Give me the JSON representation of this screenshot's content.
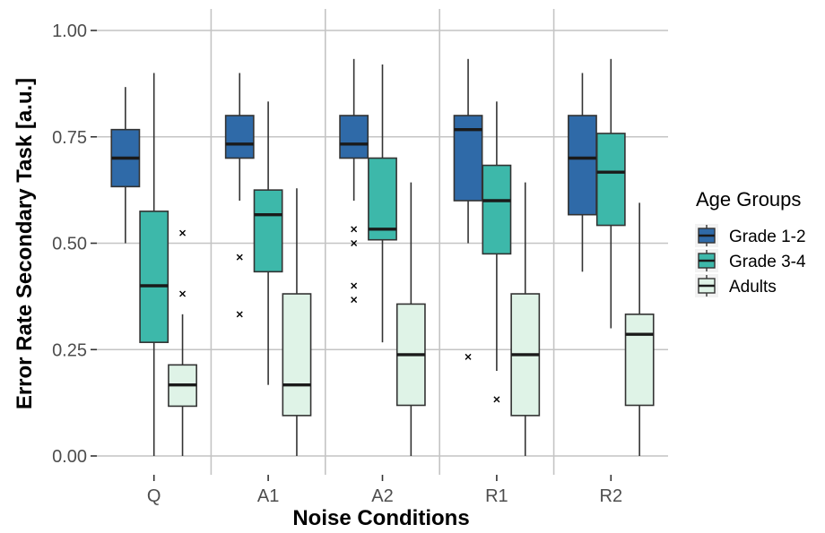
{
  "chart_data": {
    "type": "boxplot",
    "title": "",
    "xlabel": "Noise Conditions",
    "ylabel": "Error Rate Secondary Task [a.u.]",
    "ylim": [
      0,
      1.06
    ],
    "y_ticks": [
      0,
      0.25,
      0.5,
      0.75,
      1.0
    ],
    "y_tick_labels": [
      "0.00",
      "0.25",
      "0.50",
      "0.75",
      "1.00"
    ],
    "categories": [
      "Q",
      "A1",
      "A2",
      "R1",
      "R2"
    ],
    "grid": true,
    "legend": {
      "title": "Age Groups",
      "position": "right"
    },
    "series": [
      {
        "name": "Grade 1-2",
        "color": "#2f6aa8",
        "boxes": [
          {
            "min": 0.5,
            "q1": 0.633,
            "median": 0.7,
            "q3": 0.767,
            "max": 0.867,
            "outliers": []
          },
          {
            "min": 0.6,
            "q1": 0.7,
            "median": 0.733,
            "q3": 0.8,
            "max": 0.9,
            "outliers": [
              0.467,
              0.333
            ]
          },
          {
            "min": 0.6,
            "q1": 0.7,
            "median": 0.733,
            "q3": 0.8,
            "max": 0.933,
            "outliers": [
              0.533,
              0.5,
              0.4,
              0.367
            ]
          },
          {
            "min": 0.5,
            "q1": 0.6,
            "median": 0.767,
            "q3": 0.8,
            "max": 0.933,
            "outliers": [
              0.233
            ]
          },
          {
            "min": 0.433,
            "q1": 0.567,
            "median": 0.7,
            "q3": 0.8,
            "max": 0.9,
            "outliers": []
          }
        ]
      },
      {
        "name": "Grade 3-4",
        "color": "#3db8aa",
        "boxes": [
          {
            "min": 0.0,
            "q1": 0.267,
            "median": 0.4,
            "q3": 0.575,
            "max": 0.9,
            "outliers": []
          },
          {
            "min": 0.167,
            "q1": 0.433,
            "median": 0.567,
            "q3": 0.625,
            "max": 0.833,
            "outliers": []
          },
          {
            "min": 0.267,
            "q1": 0.508,
            "median": 0.533,
            "q3": 0.7,
            "max": 0.92,
            "outliers": []
          },
          {
            "min": 0.2,
            "q1": 0.475,
            "median": 0.6,
            "q3": 0.683,
            "max": 0.833,
            "outliers": [
              0.133
            ]
          },
          {
            "min": 0.3,
            "q1": 0.542,
            "median": 0.667,
            "q3": 0.758,
            "max": 0.933,
            "outliers": []
          }
        ]
      },
      {
        "name": "Adults",
        "color": "#dff3e7",
        "boxes": [
          {
            "min": 0.0,
            "q1": 0.117,
            "median": 0.167,
            "q3": 0.214,
            "max": 0.333,
            "outliers": [
              0.524,
              0.381
            ]
          },
          {
            "min": 0.0,
            "q1": 0.095,
            "median": 0.167,
            "q3": 0.381,
            "max": 0.629,
            "outliers": []
          },
          {
            "min": 0.0,
            "q1": 0.119,
            "median": 0.238,
            "q3": 0.357,
            "max": 0.643,
            "outliers": []
          },
          {
            "min": 0.0,
            "q1": 0.095,
            "median": 0.238,
            "q3": 0.381,
            "max": 0.643,
            "outliers": []
          },
          {
            "min": 0.0,
            "q1": 0.119,
            "median": 0.286,
            "q3": 0.333,
            "max": 0.595,
            "outliers": []
          }
        ]
      }
    ]
  }
}
